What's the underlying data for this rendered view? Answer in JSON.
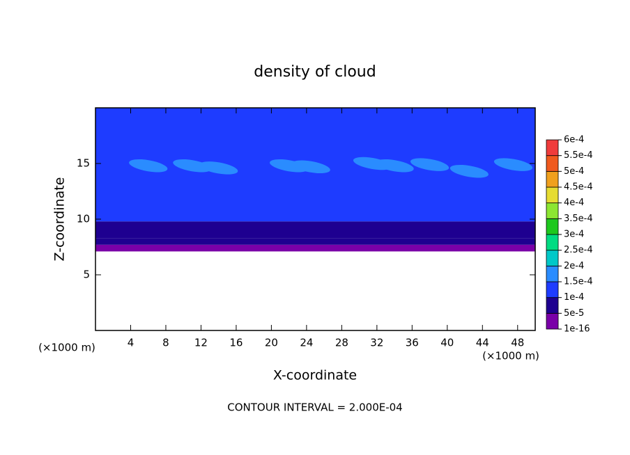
{
  "chart_data": {
    "type": "contour",
    "title": "density of cloud",
    "xlabel": "X-coordinate",
    "ylabel": "Z-coordinate",
    "xunit": "(×1000 m)",
    "zunit": "(×1000 m)",
    "footer": "CONTOUR INTERVAL = 2.000E-04",
    "xlim": [
      0,
      50
    ],
    "ylim": [
      0,
      20
    ],
    "xticks": [
      4,
      8,
      12,
      16,
      20,
      24,
      28,
      32,
      36,
      40,
      44,
      48
    ],
    "yticks": [
      5,
      10,
      15
    ],
    "colorbar": {
      "ticks": [
        {
          "value": 1e-16,
          "label": "1e-16"
        },
        {
          "value": 5e-05,
          "label": "5e-5"
        },
        {
          "value": 0.0001,
          "label": "1e-4"
        },
        {
          "value": 0.00015,
          "label": "1.5e-4"
        },
        {
          "value": 0.0002,
          "label": "2e-4"
        },
        {
          "value": 0.00025,
          "label": "2.5e-4"
        },
        {
          "value": 0.0003,
          "label": "3e-4"
        },
        {
          "value": 0.00035,
          "label": "3.5e-4"
        },
        {
          "value": 0.0004,
          "label": "4e-4"
        },
        {
          "value": 0.00045,
          "label": "4.5e-4"
        },
        {
          "value": 0.0005,
          "label": "5e-4"
        },
        {
          "value": 0.00055,
          "label": "5.5e-4"
        },
        {
          "value": 0.0006,
          "label": "6e-4"
        }
      ],
      "colors": [
        "#7a00a8",
        "#1e0090",
        "#1e3cff",
        "#2a8cff",
        "#00c8c8",
        "#00dc82",
        "#1ec81e",
        "#8ce632",
        "#e6dc32",
        "#f0a01e",
        "#f05a1e",
        "#f03c3c"
      ]
    },
    "field": {
      "z": [
        7.1,
        7.7,
        8.3,
        9.0,
        9.8,
        11.0,
        17.5
      ],
      "values": [
        1e-16,
        5e-05,
        7e-05,
        9e-05,
        0.0001,
        0.00012,
        0.0001
      ]
    },
    "patches": {
      "x": [
        6,
        11,
        14,
        22,
        24.5,
        31.5,
        34,
        38,
        42.5,
        47.5
      ],
      "z": [
        14.8,
        14.8,
        14.6,
        14.8,
        14.7,
        15,
        14.8,
        14.9,
        14.3,
        14.9
      ],
      "values": [
        0.00015,
        0.00015,
        0.00015,
        0.00015,
        0.00015,
        0.00015,
        0.00015,
        0.00015,
        0.00015,
        0.00015
      ]
    }
  }
}
